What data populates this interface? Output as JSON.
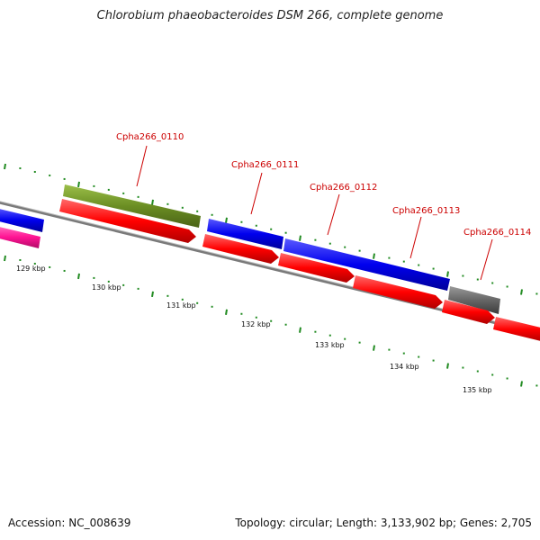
{
  "title": "Chlorobium phaeobacteroides DSM 266, complete genome",
  "accession": "Accession: NC_008639",
  "summary": "Topology: circular; Length: 3,133,902 bp; Genes: 2,705",
  "gene_labels": [
    "Cpha266_0110",
    "Cpha266_0111",
    "Cpha266_0112",
    "Cpha266_0113",
    "Cpha266_0114"
  ],
  "kbp_labels": [
    "129 kbp",
    "130 kbp",
    "131 kbp",
    "132 kbp",
    "133 kbp",
    "134 kbp",
    "135 kbp"
  ],
  "colors": {
    "red": "#ff0000",
    "blue": "#0000ee",
    "olive": "#6b8e23",
    "gray": "#666666",
    "magenta": "#ff1493",
    "tick": "#228b22",
    "backbone": "#7a7a7a"
  }
}
